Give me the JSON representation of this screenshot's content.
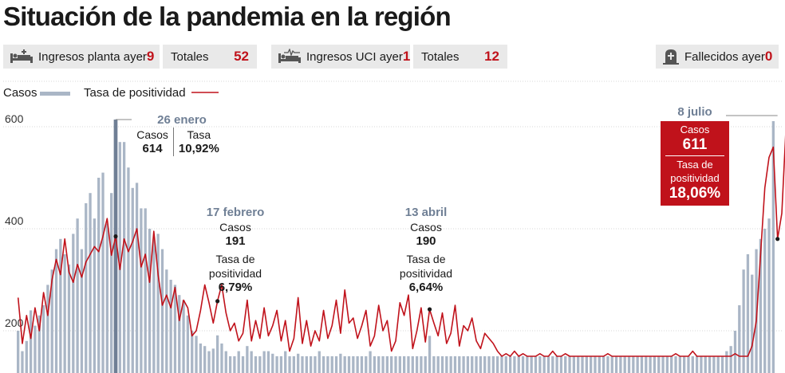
{
  "title": "Situación de la pandemia en la región",
  "stats": {
    "ingresos_planta": {
      "label": "Ingresos planta ayer",
      "value": "9",
      "icon": "hospital-bed-icon"
    },
    "totales_planta": {
      "label": "Totales",
      "value": "52"
    },
    "ingresos_uci": {
      "label": "Ingresos UCI ayer",
      "value": "1",
      "icon": "icu-bed-icon"
    },
    "totales_uci": {
      "label": "Totales",
      "value": "12"
    },
    "fallecidos": {
      "label": "Fallecidos ayer",
      "value": "0",
      "icon": "gravestone-icon"
    }
  },
  "legend": {
    "casos": "Casos",
    "tasa": "Tasa de positividad"
  },
  "annotations": {
    "jan": {
      "date": "26 enero",
      "casos_label": "Casos",
      "casos": "614",
      "tasa_label": "Tasa",
      "tasa": "10,92%"
    },
    "feb": {
      "date": "17 febrero",
      "casos_label": "Casos",
      "casos": "191",
      "tasa_label_1": "Tasa de",
      "tasa_label_2": "positividad",
      "tasa": "6,79%"
    },
    "apr": {
      "date": "13 abril",
      "casos_label": "Casos",
      "casos": "190",
      "tasa_label_1": "Tasa de",
      "tasa_label_2": "positividad",
      "tasa": "6,64%"
    },
    "jul": {
      "date": "8 julio",
      "casos_label": "Casos",
      "casos": "611",
      "tasa_label_1": "Tasa de",
      "tasa_label_2": "positividad",
      "tasa": "18,06%"
    }
  },
  "colors": {
    "bars": "#aab6c6",
    "highlight_bar": "#6f7f95",
    "line": "#c0121b",
    "grid": "#d7d7d7",
    "text": "#1a1a1a"
  },
  "chart_data": {
    "type": "bar",
    "grid": true,
    "legend_position": "top-left",
    "y_ticks": [
      200,
      400,
      600
    ],
    "ylim": [
      150,
      640
    ],
    "x_range": [
      0,
      180
    ],
    "series": [
      {
        "name": "Casos",
        "type": "bar",
        "values": [
          200,
          160,
          180,
          240,
          210,
          230,
          250,
          290,
          320,
          360,
          380,
          350,
          330,
          390,
          420,
          360,
          450,
          470,
          420,
          500,
          510,
          410,
          470,
          614,
          570,
          570,
          520,
          480,
          490,
          440,
          440,
          400,
          380,
          390,
          360,
          320,
          300,
          290,
          270,
          260,
          230,
          200,
          190,
          175,
          170,
          160,
          165,
          191,
          175,
          160,
          150,
          150,
          160,
          150,
          170,
          160,
          150,
          150,
          160,
          160,
          155,
          150,
          150,
          160,
          150,
          150,
          155,
          150,
          150,
          150,
          150,
          160,
          150,
          150,
          150,
          150,
          155,
          150,
          150,
          150,
          150,
          150,
          150,
          160,
          150,
          150,
          150,
          150,
          150,
          150,
          150,
          150,
          150,
          150,
          150,
          150,
          150,
          190,
          150,
          150,
          150,
          150,
          150,
          150,
          150,
          150,
          150,
          150,
          150,
          150,
          150,
          150,
          150,
          150,
          150,
          150,
          150,
          150,
          150,
          150,
          150,
          150,
          150,
          150,
          150,
          150,
          150,
          150,
          150,
          150,
          150,
          150,
          150,
          150,
          150,
          150,
          150,
          150,
          150,
          150,
          150,
          150,
          150,
          150,
          150,
          150,
          150,
          150,
          150,
          150,
          150,
          150,
          150,
          150,
          150,
          150,
          150,
          150,
          150,
          150,
          150,
          150,
          150,
          150,
          150,
          150,
          150,
          160,
          170,
          200,
          250,
          320,
          350,
          310,
          360,
          380,
          400,
          420,
          611
        ]
      },
      {
        "name": "Tasa de positividad",
        "type": "line",
        "values": [
          265,
          175,
          230,
          185,
          245,
          200,
          275,
          230,
          300,
          340,
          310,
          380,
          315,
          295,
          330,
          305,
          335,
          350,
          365,
          355,
          385,
          420,
          348,
          385,
          320,
          380,
          355,
          375,
          400,
          325,
          350,
          295,
          395,
          310,
          250,
          270,
          245,
          285,
          220,
          260,
          245,
          190,
          200,
          240,
          290,
          255,
          215,
          258,
          290,
          235,
          200,
          215,
          180,
          195,
          260,
          180,
          220,
          185,
          245,
          190,
          210,
          240,
          180,
          220,
          160,
          185,
          265,
          175,
          220,
          170,
          200,
          180,
          240,
          185,
          210,
          260,
          195,
          280,
          215,
          225,
          185,
          210,
          240,
          170,
          190,
          250,
          200,
          220,
          160,
          180,
          255,
          230,
          270,
          165,
          200,
          245,
          178,
          242,
          215,
          190,
          235,
          175,
          195,
          250,
          170,
          210,
          200,
          225,
          180,
          165,
          195,
          185,
          175,
          160,
          150,
          155,
          150,
          160,
          150,
          155,
          150,
          150,
          150,
          155,
          150,
          150,
          160,
          150,
          150,
          155,
          150,
          150,
          150,
          150,
          150,
          150,
          150,
          150,
          150,
          155,
          150,
          150,
          150,
          150,
          150,
          150,
          150,
          150,
          150,
          150,
          150,
          150,
          150,
          150,
          150,
          155,
          150,
          150,
          150,
          160,
          150,
          150,
          150,
          150,
          150,
          150,
          150,
          150,
          150,
          155,
          150,
          150,
          150,
          170,
          220,
          350,
          480,
          540,
          560,
          380,
          430,
          600
        ]
      }
    ]
  }
}
